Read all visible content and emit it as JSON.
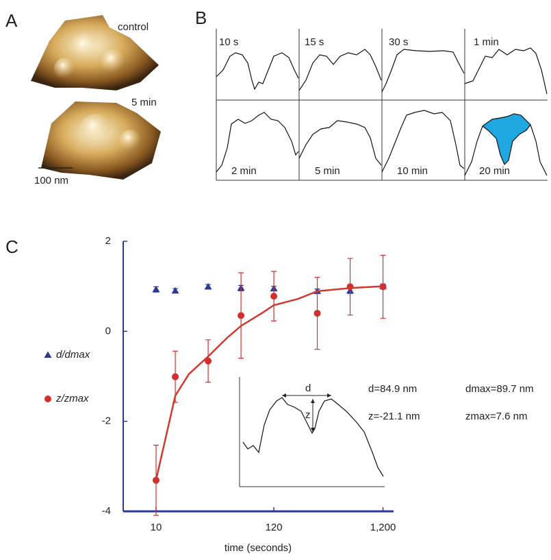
{
  "panel_a": {
    "label": "A",
    "images": [
      "control",
      "5 min"
    ],
    "scale_bar": "100 nm"
  },
  "panel_b": {
    "label": "B",
    "profiles": [
      "10 s",
      "15 s",
      "30 s",
      "1 min",
      "2 min",
      "5 min",
      "10 min",
      "20 min"
    ]
  },
  "panel_c": {
    "label": "C"
  },
  "chart_data": {
    "type": "scatter",
    "x_label": "time (seconds)",
    "xscale": "log",
    "xlim": [
      5,
      1500
    ],
    "xticks": [
      10,
      120,
      {
        "value": 1200,
        "label": "1,200"
      }
    ],
    "ylim": [
      -4,
      2
    ],
    "yticks": [
      -4,
      -2,
      0,
      2
    ],
    "axis_color": "#2b3a98",
    "series": [
      {
        "name": "d/dmax",
        "color": "#2b3a98",
        "marker": "triangle",
        "x": [
          10,
          15,
          30,
          60,
          120,
          300,
          600,
          1200
        ],
        "values": [
          0.93,
          0.9,
          0.99,
          0.96,
          0.95,
          0.89,
          0.9,
          1.0
        ],
        "errors": [
          0.06,
          0.05,
          0.05,
          0.06,
          0.05,
          0.05,
          0.06,
          0.05
        ]
      },
      {
        "name": "z/zmax",
        "color": "#d32f2f",
        "marker": "circle",
        "x": [
          10,
          15,
          30,
          60,
          120,
          300,
          600,
          1200
        ],
        "values": [
          -3.31,
          -1.01,
          -0.66,
          0.35,
          0.78,
          0.4,
          0.99,
          0.99
        ],
        "errors": [
          0.78,
          0.57,
          0.47,
          0.95,
          0.55,
          0.8,
          0.63,
          0.7
        ]
      },
      {
        "type": "line",
        "color": "#d0392b",
        "x": [
          10,
          15,
          20,
          30,
          45,
          60,
          90,
          120,
          200,
          300,
          600,
          1200
        ],
        "values": [
          -3.3,
          -1.43,
          -0.95,
          -0.56,
          -0.14,
          0.12,
          0.38,
          0.58,
          0.72,
          0.89,
          0.96,
          1.0
        ]
      }
    ],
    "inset_labels": [
      "d",
      "z"
    ],
    "annotations": [
      "d=84.9 nm",
      "dmax=89.7 nm",
      "z=-21.1 nm",
      "zmax=7.6 nm"
    ]
  }
}
